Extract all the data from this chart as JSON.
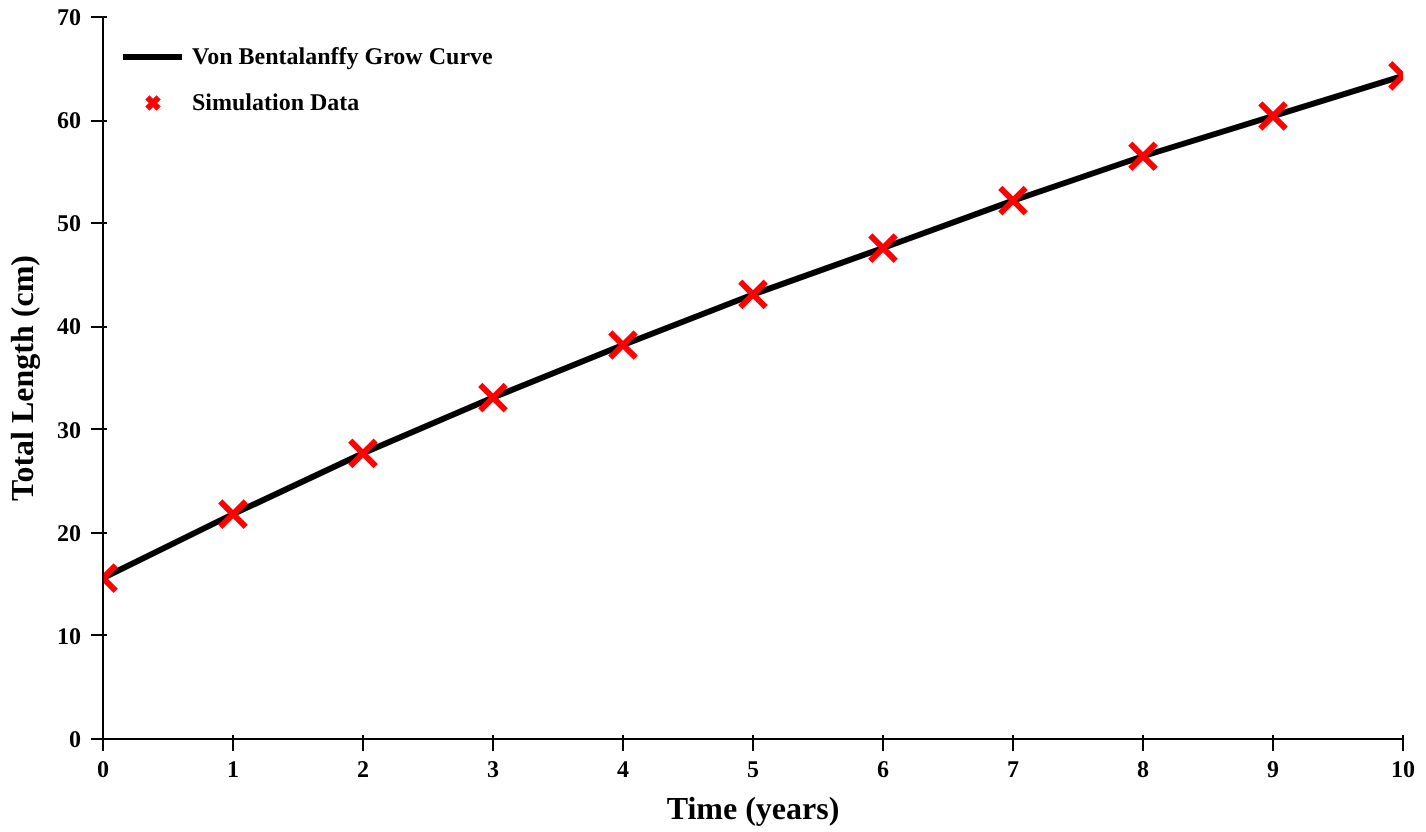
{
  "chart_data": {
    "type": "line",
    "xlabel": "Time (years)",
    "ylabel": "Total Length (cm)",
    "x": [
      0,
      1,
      2,
      3,
      4,
      5,
      6,
      7,
      8,
      9,
      10
    ],
    "series": [
      {
        "name": "Von Bentalanffy Grow Curve",
        "color": "#000000",
        "line_style": "solid",
        "values": [
          15.6,
          21.8,
          27.7,
          33.1,
          38.2,
          43.1,
          47.6,
          52.2,
          56.5,
          60.4,
          64.3
        ]
      },
      {
        "name": "Simulation Data",
        "type": "scatter",
        "color": "#ff0000",
        "marker": "cross",
        "values": [
          15.6,
          21.8,
          27.7,
          33.1,
          38.2,
          43.1,
          47.6,
          52.2,
          56.5,
          60.4,
          64.3
        ]
      }
    ],
    "xlim": [
      0,
      10
    ],
    "xticks": [
      0,
      1,
      2,
      3,
      4,
      5,
      6,
      7,
      8,
      9,
      10
    ],
    "ylim": [
      0,
      70
    ],
    "yticks": [
      0,
      10,
      20,
      30,
      40,
      50,
      60,
      70
    ],
    "grid": false,
    "legend": "top left"
  }
}
